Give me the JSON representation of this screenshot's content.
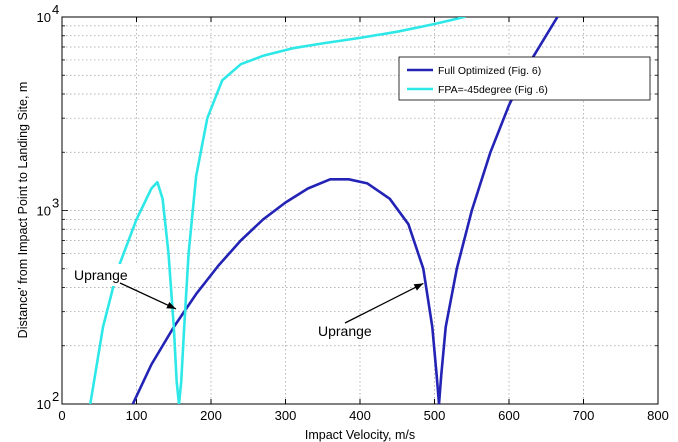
{
  "chart_data": {
    "type": "line",
    "xlabel": "Impact Velocity, m/s",
    "ylabel": "Distance' from Impact Point to Landing Site, m",
    "xlim": [
      0,
      800
    ],
    "ylim": [
      100,
      10000
    ],
    "yscale": "log",
    "grid": true,
    "x_ticks": [
      "0",
      "100",
      "200",
      "300",
      "400",
      "500",
      "600",
      "700",
      "800"
    ],
    "y_tick_base": "10",
    "y_ticks": [
      {
        "value": 100,
        "exp": "2"
      },
      {
        "value": 1000,
        "exp": "3"
      },
      {
        "value": 10000,
        "exp": "4"
      }
    ],
    "legend": {
      "position": "top-right",
      "entries": [
        {
          "label": "Full Optimized (Fig. 6)",
          "color": "#2323b5"
        },
        {
          "label": "FPA=-45degree (Fig .6)",
          "color": "#2ee8e8"
        }
      ]
    },
    "series": [
      {
        "name": "Full Optimized (Fig. 6)",
        "color": "#2323b5",
        "x": [
          95,
          120,
          150,
          180,
          210,
          240,
          270,
          300,
          330,
          360,
          385,
          410,
          440,
          465,
          485,
          497,
          503,
          506,
          509,
          515,
          530,
          550,
          575,
          600,
          630,
          665
        ],
        "y": [
          100,
          160,
          250,
          370,
          520,
          700,
          900,
          1100,
          1300,
          1450,
          1450,
          1380,
          1150,
          850,
          500,
          250,
          140,
          100,
          140,
          250,
          500,
          1000,
          2000,
          3500,
          6000,
          10000
        ]
      },
      {
        "name": "FPA=-45degree (Fig .6)",
        "color": "#2ee8e8",
        "x": [
          38,
          55,
          75,
          100,
          120,
          128,
          135,
          143,
          150,
          154,
          157,
          160,
          164,
          170,
          180,
          195,
          215,
          240,
          270,
          310,
          350,
          400,
          450,
          500,
          540
        ],
        "y": [
          100,
          250,
          500,
          900,
          1300,
          1400,
          1150,
          600,
          250,
          130,
          100,
          130,
          250,
          600,
          1500,
          3000,
          4700,
          5700,
          6300,
          6900,
          7300,
          7800,
          8400,
          9200,
          10000
        ]
      }
    ],
    "annotations": [
      {
        "text": "Uprange",
        "arrow_to": {
          "x": 153,
          "y": 310
        }
      },
      {
        "text": "Uprange",
        "arrow_to": {
          "x": 485,
          "y": 420
        }
      }
    ]
  }
}
